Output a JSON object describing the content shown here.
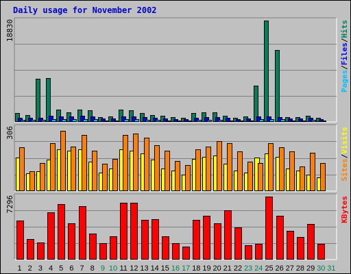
{
  "chart_data": {
    "type": "bar",
    "title": "Daily usage for November 2002",
    "categories": [
      "1",
      "2",
      "3",
      "4",
      "5",
      "6",
      "7",
      "8",
      "9",
      "10",
      "11",
      "12",
      "13",
      "14",
      "15",
      "16",
      "17",
      "18",
      "19",
      "20",
      "21",
      "22",
      "23",
      "24",
      "25",
      "26",
      "27",
      "28",
      "29",
      "30",
      "31"
    ],
    "weekend_days": [
      "9",
      "10",
      "16",
      "17",
      "23",
      "24",
      "30",
      "31"
    ],
    "panels": [
      {
        "name": "pages-files-hits",
        "ymax_label": "18830",
        "ymax": 18830,
        "legend": [
          {
            "text": "Pages",
            "color": "#00c0ff"
          },
          {
            "text": "/",
            "color": "#000000"
          },
          {
            "text": "Files",
            "color": "#0000ff"
          },
          {
            "text": "/",
            "color": "#000000"
          },
          {
            "text": "Hits",
            "color": "#00805c"
          }
        ],
        "series": [
          {
            "name": "Hits",
            "color": "#00805c",
            "values": [
              1600,
              1300,
              8000,
              8200,
              2300,
              1800,
              2300,
              2100,
              900,
              1000,
              2300,
              2100,
              1700,
              1300,
              1100,
              900,
              800,
              1600,
              1800,
              1800,
              1200,
              700,
              1000,
              6700,
              18830,
              13300,
              900,
              900,
              1200,
              800,
              null
            ]
          },
          {
            "name": "Files",
            "color": "#0000ff",
            "values": [
              800,
              800,
              700,
              1100,
              1000,
              1000,
              1100,
              1000,
              600,
              600,
              1000,
              1000,
              900,
              800,
              600,
              500,
              500,
              800,
              900,
              900,
              700,
              500,
              600,
              1000,
              1000,
              900,
              600,
              600,
              700,
              500,
              null
            ]
          },
          {
            "name": "Pages",
            "color": "#00c0ff",
            "values": [
              400,
              400,
              400,
              500,
              500,
              500,
              500,
              500,
              300,
              300,
              500,
              500,
              400,
              400,
              300,
              300,
              300,
              400,
              400,
              400,
              300,
              300,
              300,
              500,
              500,
              500,
              300,
              300,
              400,
              300,
              null
            ]
          }
        ]
      },
      {
        "name": "visits-sites",
        "ymax_label": "306",
        "ymax": 306,
        "legend": [
          {
            "text": "Sites",
            "color": "#ff8000"
          },
          {
            "text": "/",
            "color": "#000000"
          },
          {
            "text": "Visits",
            "color": "#ffff00"
          }
        ],
        "series": [
          {
            "name": "Visits",
            "color": "#ffff00",
            "values": [
              160,
              85,
              95,
              150,
              200,
              195,
              200,
              140,
              90,
              110,
              200,
              195,
              180,
              150,
              110,
              100,
              80,
              155,
              165,
              170,
              130,
              100,
              90,
              160,
              180,
              165,
              110,
              100,
              80,
              65,
              null
            ]
          },
          {
            "name": "Sites",
            "color": "#ff8000",
            "values": [
              210,
              95,
              135,
              230,
              290,
              215,
              270,
              195,
              130,
              155,
              270,
              275,
              255,
              220,
              195,
              145,
              125,
              200,
              215,
              240,
              230,
              190,
              140,
              135,
              230,
              210,
              190,
              120,
              185,
              135,
              null
            ]
          }
        ]
      },
      {
        "name": "kbytes",
        "ymax_label": "7296",
        "ymax": 7296,
        "legend": [
          {
            "text": "KBytes",
            "color": "#ff0000"
          }
        ],
        "series": [
          {
            "name": "KBytes",
            "color": "#ff0000",
            "values": [
              4500,
              2400,
              2000,
              5500,
              6400,
              4200,
              6200,
              3000,
              1900,
              2700,
              6600,
              6600,
              4600,
              4700,
              2700,
              1900,
              1500,
              4600,
              5100,
              4200,
              5700,
              3700,
              1700,
              1800,
              7296,
              5100,
              3300,
              2600,
              4100,
              1800,
              null
            ]
          }
        ]
      }
    ]
  }
}
